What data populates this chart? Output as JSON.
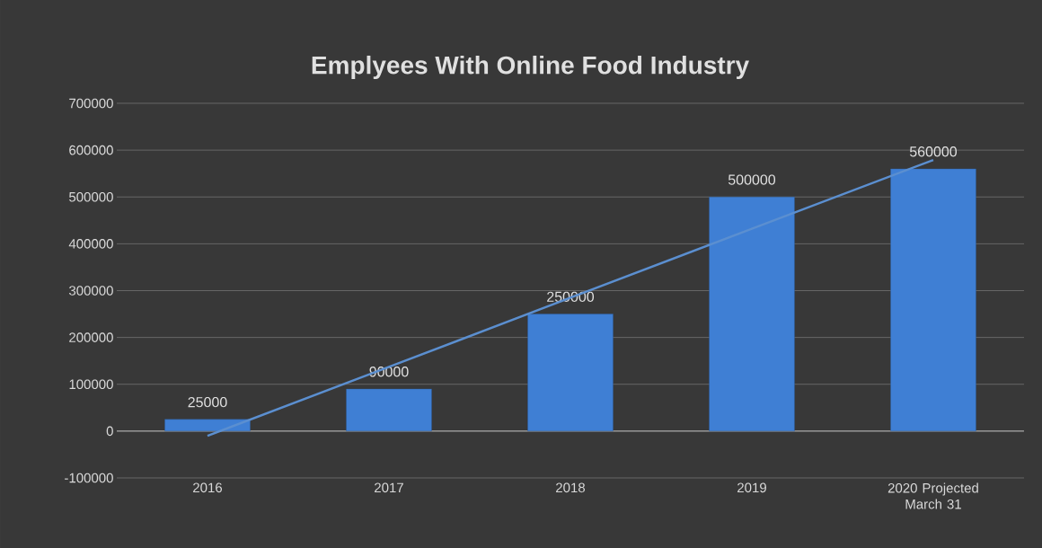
{
  "chart_data": {
    "type": "bar",
    "title": "Emplyees With Online Food Industry",
    "categories": [
      "2016",
      "2017",
      "2018",
      "2019",
      "2020 Projected March 31"
    ],
    "series": [
      {
        "color": "#3f7fd4",
        "values": [
          25000,
          90000,
          250000,
          500000,
          560000
        ],
        "value_labels": [
          "25000",
          "90000",
          "250000",
          "500000",
          "560000"
        ]
      },
      {
        "type": "line",
        "color": "#5b8fd0",
        "values": [
          -10000,
          137000,
          285000,
          432000,
          579000
        ]
      }
    ],
    "ylim": [
      -100000,
      700000
    ],
    "yticks": [
      -100000,
      0,
      100000,
      200000,
      300000,
      400000,
      500000,
      600000,
      700000
    ],
    "grid": "y",
    "line_style": "solid",
    "marker": "none"
  }
}
